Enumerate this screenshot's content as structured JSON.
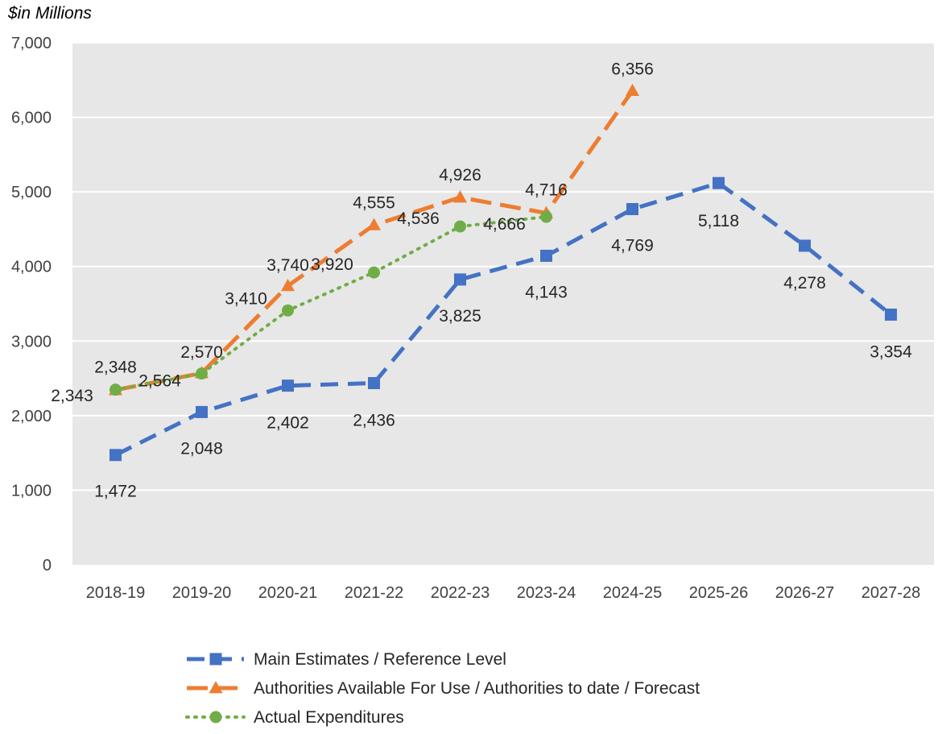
{
  "chart_data": {
    "type": "line",
    "unit_label": "$in Millions",
    "categories": [
      "2018-19",
      "2019-20",
      "2020-21",
      "2021-22",
      "2022-23",
      "2023-24",
      "2024-25",
      "2025-26",
      "2026-27",
      "2027-28"
    ],
    "ylim": [
      0,
      7000
    ],
    "yticks": [
      0,
      1000,
      2000,
      3000,
      4000,
      5000,
      6000,
      7000
    ],
    "ytick_labels": [
      "0",
      "1,000",
      "2,000",
      "3,000",
      "4,000",
      "5,000",
      "6,000",
      "7,000"
    ],
    "grid": true,
    "legend_position": "bottom",
    "series": [
      {
        "name": "Main Estimates / Reference Level",
        "color": "#4472C4",
        "marker": "square",
        "line_style": "dashed",
        "values": [
          1472,
          2048,
          2402,
          2436,
          3825,
          4143,
          4769,
          5118,
          4278,
          3354
        ],
        "labels": [
          "1,472",
          "2,048",
          "2,402",
          "2,436",
          "3,825",
          "4,143",
          "4,769",
          "5,118",
          "4,278",
          "3,354"
        ]
      },
      {
        "name": "Authorities Available For Use / Authorities to date  / Forecast",
        "color": "#ED7D31",
        "marker": "triangle",
        "line_style": "long-dashed",
        "values": [
          2343,
          2570,
          3740,
          4555,
          4926,
          4716,
          6356,
          null,
          null,
          null
        ],
        "labels": [
          "2,343",
          "2,570",
          "3,740",
          "4,555",
          "4,926",
          "4,716",
          "6,356",
          "",
          "",
          ""
        ]
      },
      {
        "name": "Actual Expenditures",
        "color": "#70AD47",
        "marker": "circle",
        "line_style": "dotted",
        "values": [
          2348,
          2564,
          3410,
          3920,
          4536,
          4666,
          null,
          null,
          null,
          null
        ],
        "labels": [
          "2,348",
          "2,564",
          "3,410",
          "3,920",
          "4,536",
          "4,666",
          "",
          "",
          "",
          ""
        ]
      }
    ]
  }
}
